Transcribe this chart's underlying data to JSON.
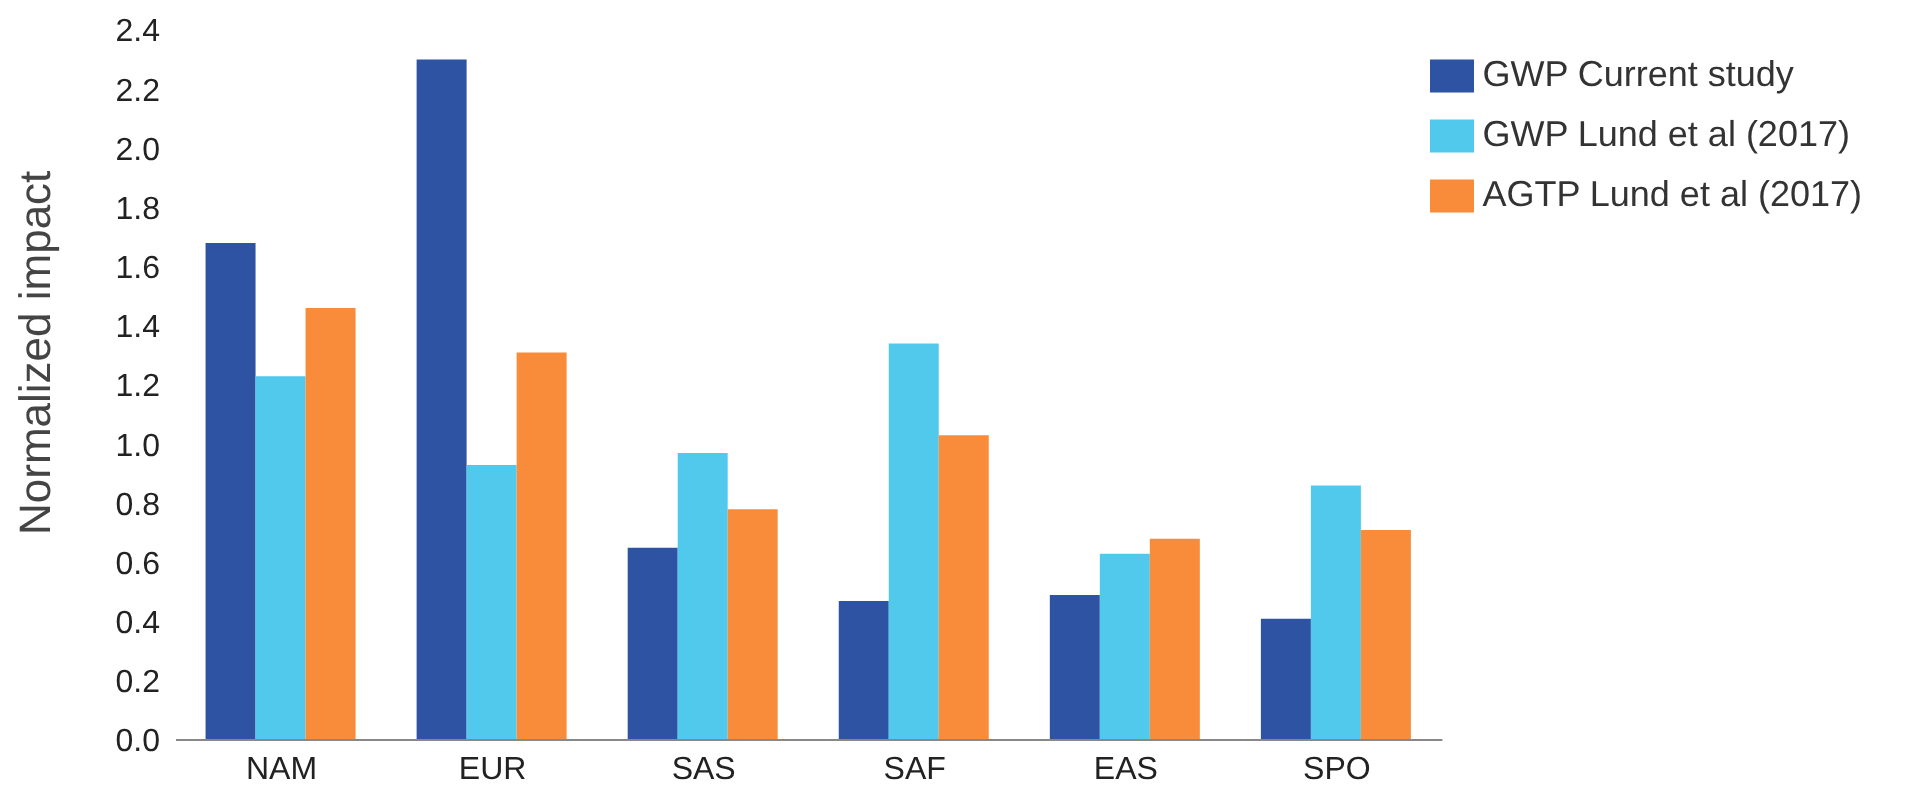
{
  "chart_data": {
    "type": "bar",
    "ylabel": "Normalized impact",
    "categories": [
      "NAM",
      "EUR",
      "SAS",
      "SAF",
      "EAS",
      "SPO"
    ],
    "series": [
      {
        "name": "GWP Current study",
        "color": "#2f53a3",
        "values": [
          1.68,
          2.3,
          0.65,
          0.47,
          0.49,
          0.41
        ]
      },
      {
        "name": "GWP Lund et al (2017)",
        "color": "#50c9ec",
        "values": [
          1.23,
          0.93,
          0.97,
          1.34,
          0.63,
          0.86
        ]
      },
      {
        "name": "AGTP Lund et al (2017)",
        "color": "#f98c3a",
        "values": [
          1.46,
          1.31,
          0.78,
          1.03,
          0.68,
          0.71
        ]
      }
    ],
    "ylim": [
      0,
      2.4
    ],
    "yticks": [
      {
        "value": 0,
        "label": "0.0"
      },
      {
        "value": 0.2,
        "label": "0.2"
      },
      {
        "value": 0.4,
        "label": "0.4"
      },
      {
        "value": 0.6,
        "label": "0.6"
      },
      {
        "value": 0.8,
        "label": "0.8"
      },
      {
        "value": 1,
        "label": "1.0"
      },
      {
        "value": 1.2,
        "label": "1.2"
      },
      {
        "value": 1.4,
        "label": "1.4"
      },
      {
        "value": 1.6,
        "label": "1.6"
      },
      {
        "value": 1.8,
        "label": "1.8"
      },
      {
        "value": 2,
        "label": "2.0"
      },
      {
        "value": 2.2,
        "label": "2.2"
      },
      {
        "value": 2.4,
        "label": "2.4"
      }
    ],
    "grid": false,
    "legend": "top right"
  }
}
